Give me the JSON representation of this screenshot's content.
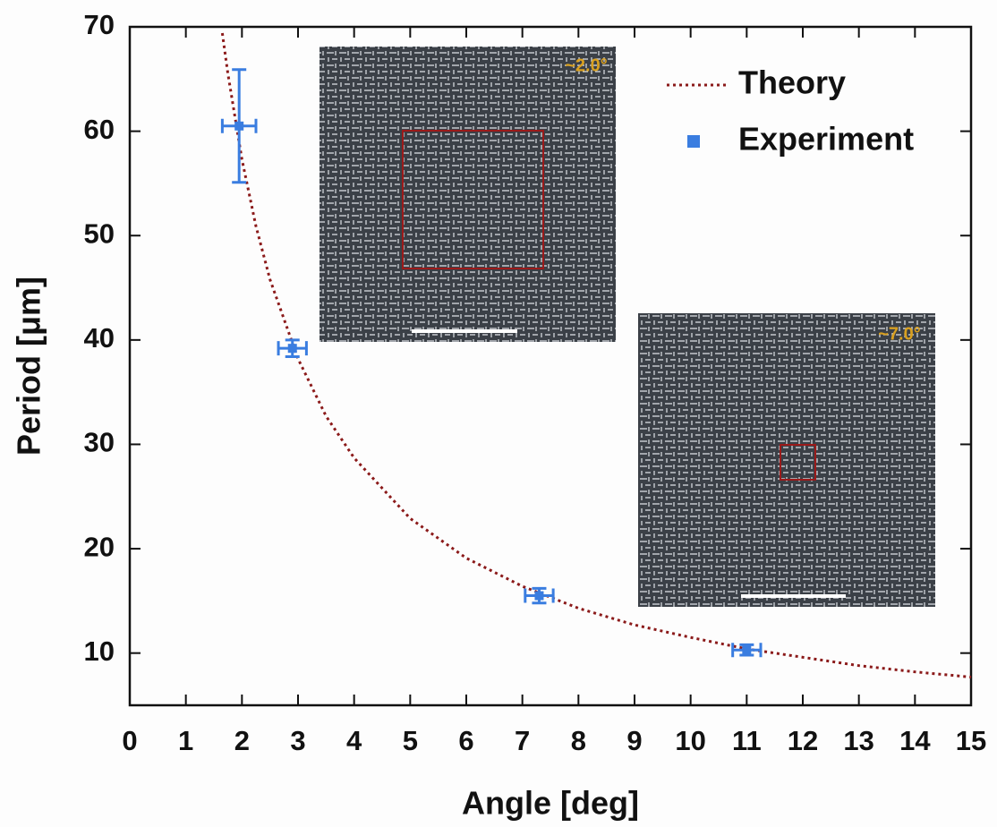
{
  "chart_data": {
    "type": "scatter",
    "x_label": "Angle [deg]",
    "y_label": "Period [μm]",
    "xlim": [
      0,
      15
    ],
    "ylim": [
      5,
      70
    ],
    "xticks": [
      0,
      1,
      2,
      3,
      4,
      5,
      6,
      7,
      8,
      9,
      10,
      11,
      12,
      13,
      14,
      15
    ],
    "yticks": [
      10,
      20,
      30,
      40,
      50,
      60,
      70
    ],
    "legend": "upper right",
    "series": [
      {
        "name": "Theory",
        "mode": "line",
        "color": "#8b1a1a",
        "x": [
          1.65,
          1.75,
          2,
          2.25,
          2.5,
          3,
          3.5,
          4,
          5,
          6,
          7,
          8,
          9,
          10,
          11,
          12,
          13,
          14,
          15
        ],
        "values": [
          69.4,
          65.5,
          57.3,
          50.9,
          45.8,
          38.2,
          32.7,
          28.7,
          22.9,
          19.1,
          16.4,
          14.3,
          12.7,
          11.5,
          10.4,
          9.6,
          8.8,
          8.2,
          7.7
        ]
      },
      {
        "name": "Experiment",
        "mode": "markers",
        "color": "#3a7de0",
        "x": [
          1.95,
          2.9,
          7.3,
          11
        ],
        "values": [
          60.5,
          39.2,
          15.5,
          10.3
        ],
        "x_err": [
          0.3,
          0.25,
          0.25,
          0.25
        ],
        "y_err": [
          5.4,
          0.8,
          0.7,
          0.5
        ]
      }
    ],
    "annotations": [
      {
        "text": "~2.0°"
      },
      {
        "text": "~7.0°"
      }
    ]
  }
}
